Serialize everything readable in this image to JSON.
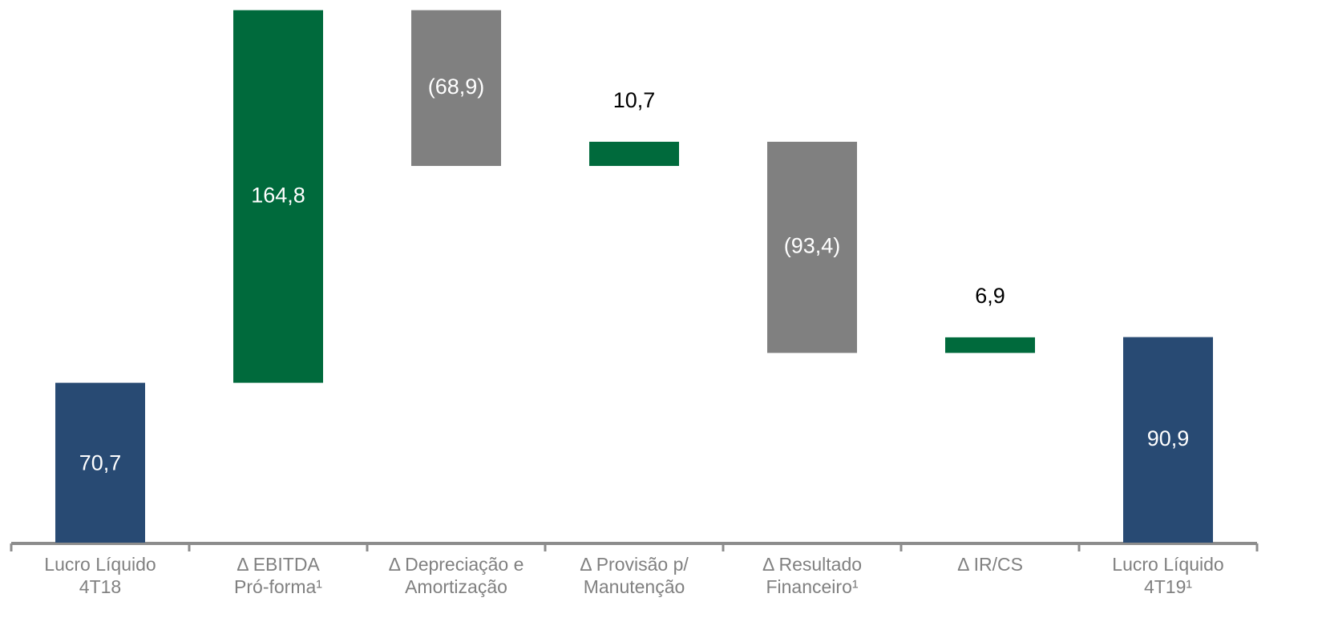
{
  "chart_data": {
    "type": "waterfall",
    "categories": [
      "Lucro Líquido\n4T18",
      "Δ EBITDA\nPró-forma¹",
      "Δ Depreciação e\nAmortização",
      "Δ Provisão p/\nManutenção",
      "Δ Resultado\nFinanceiro¹",
      "Δ IR/CS",
      "Lucro Líquido\n4T19¹"
    ],
    "values": [
      70.7,
      164.8,
      -68.9,
      10.7,
      -93.4,
      6.9,
      90.9
    ],
    "value_labels": [
      "70,7",
      "164,8",
      "(68,9)",
      "10,7",
      "(93,4)",
      "6,9",
      "90,9"
    ],
    "measures": [
      "absolute",
      "relative",
      "relative",
      "relative",
      "relative",
      "relative",
      "total"
    ],
    "colors": {
      "total": "#284a73",
      "increase": "#006a3c",
      "decrease": "#808080"
    },
    "ylim": [
      0,
      240
    ]
  }
}
